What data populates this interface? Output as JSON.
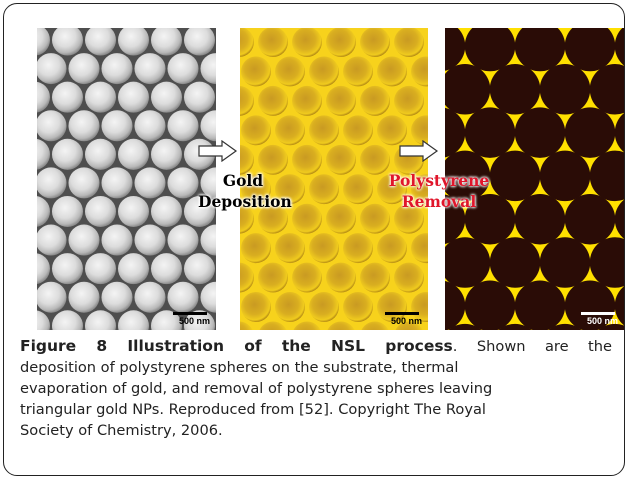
{
  "figure": {
    "step_1_label": "Gold",
    "step_1_label_2": "Deposition",
    "step_2_label": "Polystyrene",
    "step_2_label_2": "Removal",
    "panels": [
      {
        "scale_bar": "500 nm"
      },
      {
        "scale_bar": "500 nm"
      },
      {
        "scale_bar": "500 nm"
      }
    ],
    "colors": {
      "sem_bg": "#5a5a5a",
      "gold": "#f2cc1a",
      "dark": "#2a0c06",
      "np": "#ffe000"
    }
  },
  "caption": {
    "label": "Figure 8 Illustration of the NSL process",
    "line_1_rest": ". Shown are the",
    "line_2": "deposition of polystyrene spheres on the substrate, thermal",
    "line_3": "evaporation of gold, and removal of polystyrene spheres leaving",
    "line_4": "triangular gold NPs. Reproduced from [52]. Copyright The Royal",
    "line_5": "Society of Chemistry, 2006."
  }
}
